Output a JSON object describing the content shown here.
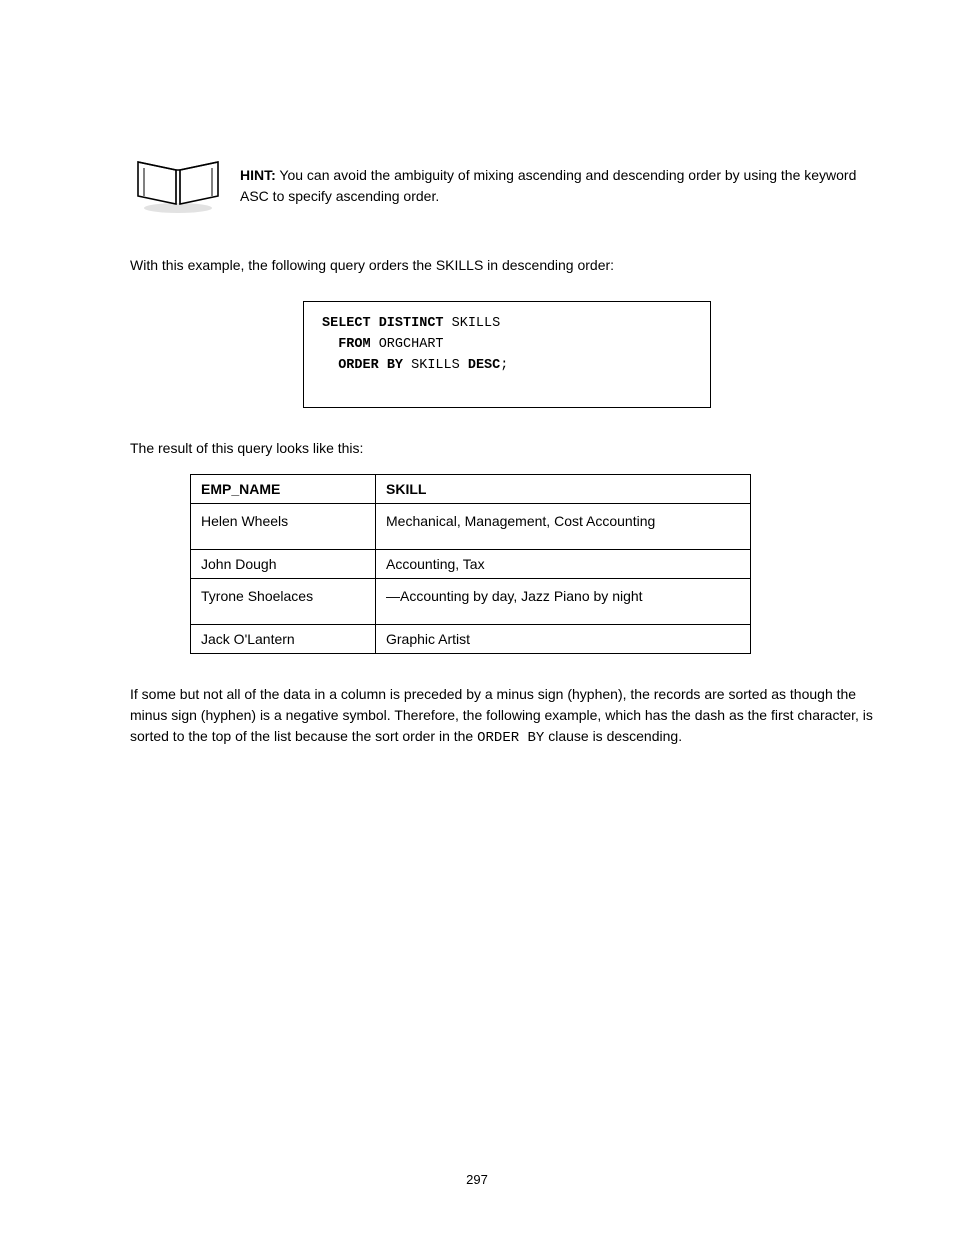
{
  "hint": {
    "label": "HINT:",
    "text": "You can avoid the ambiguity of mixing ascending and descending order by using the keyword ASC to specify ascending order."
  },
  "order_line": "With this example, the following query orders the SKILLS in descending order:",
  "code": {
    "lines": [
      "<kw>SELECT DISTINCT</kw> SKILLS",
      "  <kw>FROM</kw> ORGCHART",
      "  <kw>ORDER</kw> <kw>BY</kw> SKILLS <kw>DESC</kw>;"
    ]
  },
  "result_para": "The result of this query looks like this:",
  "table": {
    "headers": [
      "EMP_NAME",
      "SKILL"
    ],
    "rows": [
      [
        "Helen Wheels",
        "Mechanical, Management, Cost Accounting"
      ],
      [
        "John Dough",
        "Accounting, Tax"
      ],
      [
        "Tyrone Shoelaces",
        "—Accounting by day, Jazz Piano by night"
      ],
      [
        "Jack O'Lantern",
        "Graphic Artist"
      ]
    ]
  },
  "closing_para": "If some but not all of the data in a column is preceded by a minus sign (hyphen), the records are sorted as though the minus sign (hyphen) is a negative symbol. Therefore, the following example, which has the dash as the first character, is sorted to the top of the list because the sort order in the <span class=\"code-inline\">ORDER BY</span> clause is descending.",
  "page_number": "297"
}
